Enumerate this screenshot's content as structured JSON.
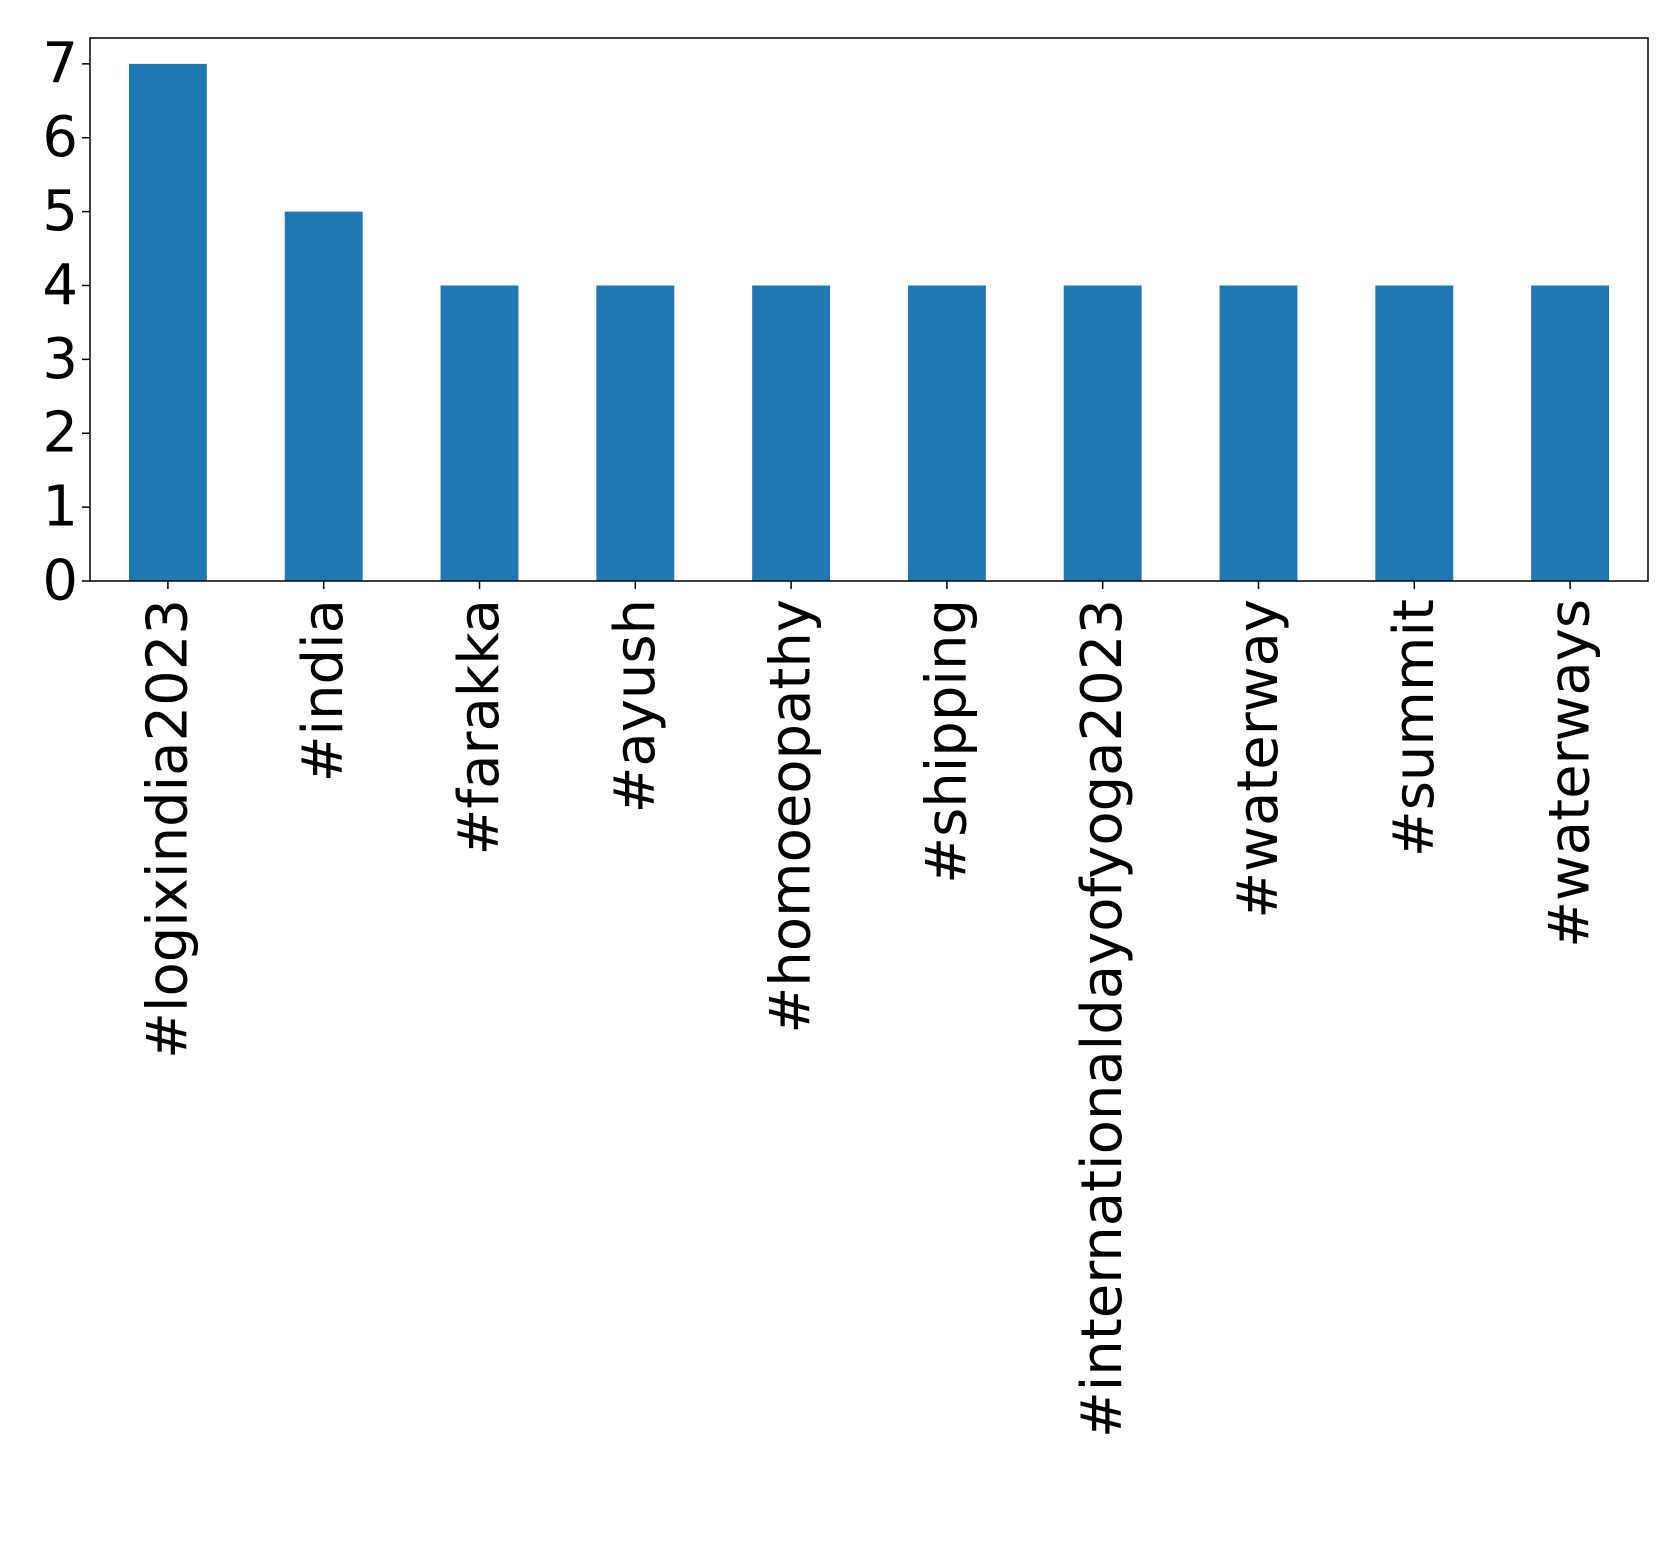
{
  "chart_data": {
    "type": "bar",
    "categories": [
      "#logixindia2023",
      "#india",
      "#farakka",
      "#ayush",
      "#homoeopathy",
      "#shipping",
      "#internationaldayofyoga2023",
      "#waterway",
      "#summit",
      "#waterways"
    ],
    "values": [
      7,
      5,
      4,
      4,
      4,
      4,
      4,
      4,
      4,
      4
    ],
    "title": "",
    "xlabel": "",
    "ylabel": "",
    "ylim": [
      0,
      7.35
    ],
    "yticks": [
      0,
      1,
      2,
      3,
      4,
      5,
      6,
      7
    ],
    "grid": false,
    "legend": "none",
    "bar_color": "#1f77b4"
  }
}
